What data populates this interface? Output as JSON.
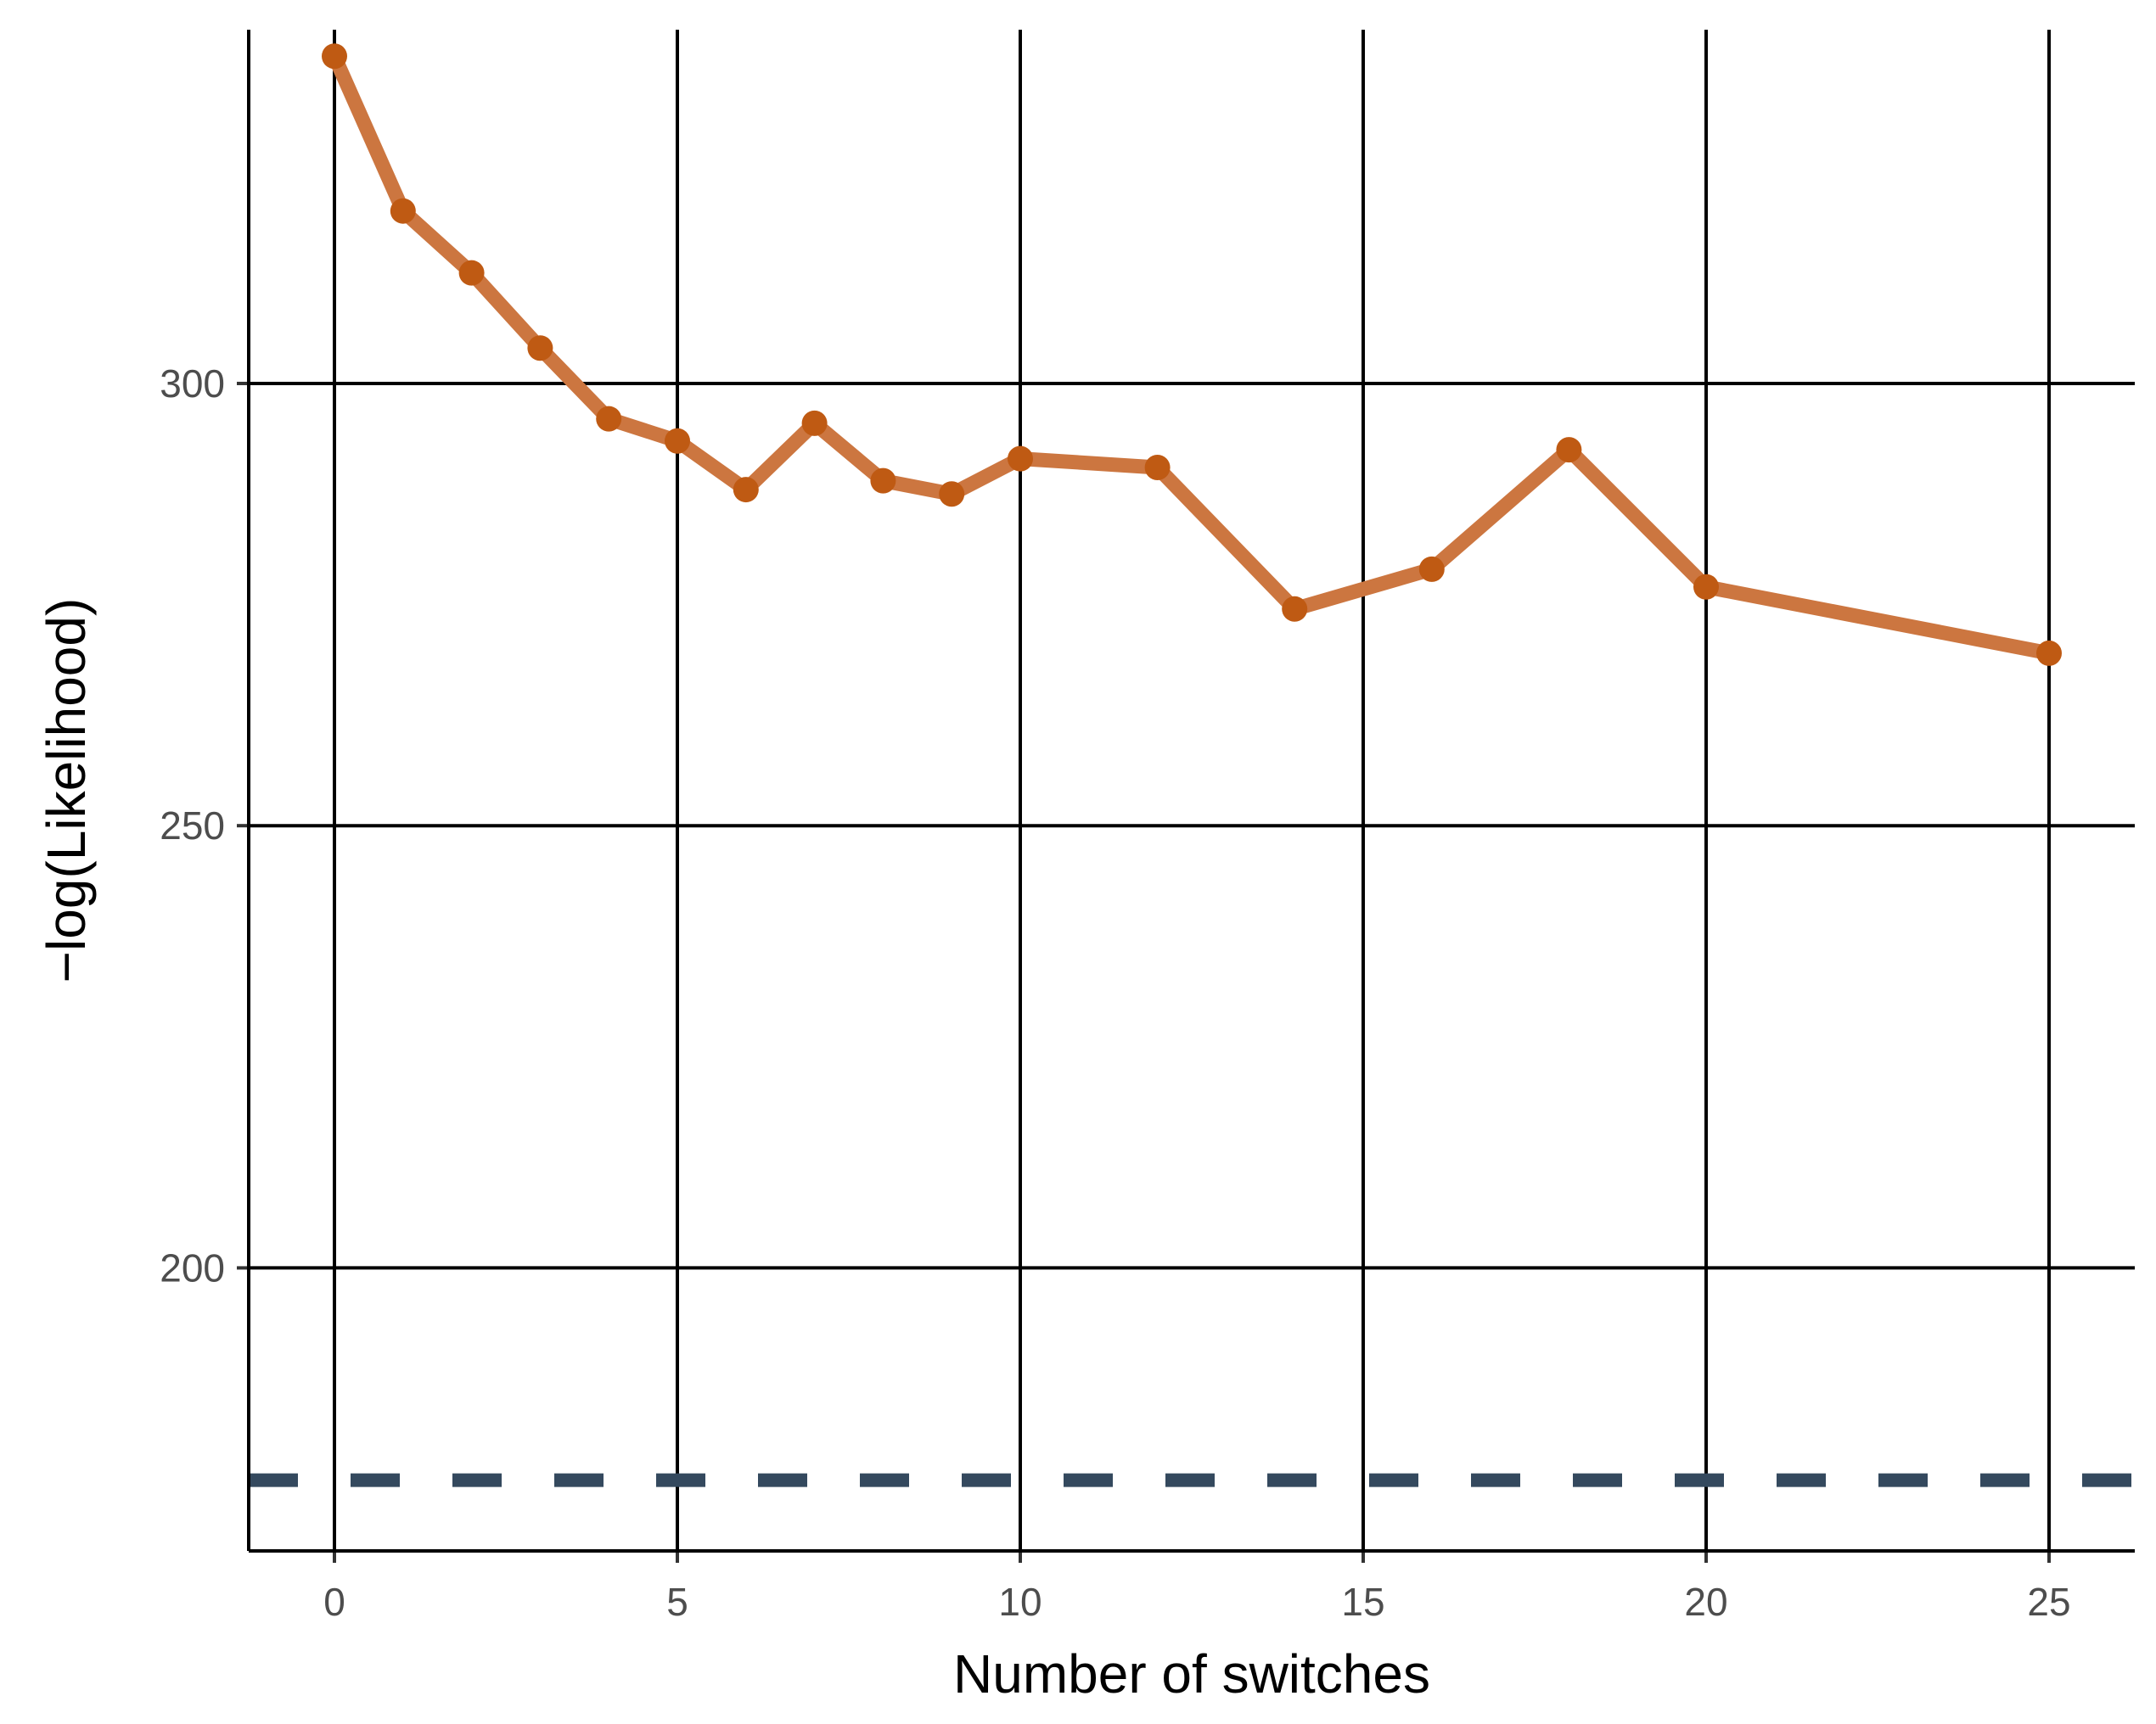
{
  "chart_data": {
    "type": "line",
    "xlabel": "Number of switches",
    "ylabel": "−log(Likelihood)",
    "xlim": [
      -1.25,
      26.25
    ],
    "ylim": [
      168,
      340
    ],
    "x_ticks": [
      0,
      5,
      10,
      15,
      20,
      25
    ],
    "x_tick_labels": [
      "0",
      "5",
      "10",
      "15",
      "20",
      "25"
    ],
    "y_ticks": [
      200,
      250,
      300
    ],
    "y_tick_labels": [
      "200",
      "250",
      "300"
    ],
    "grid": true,
    "series": [
      {
        "x": [
          0,
          1,
          2,
          3,
          4,
          5,
          6,
          7,
          8,
          9,
          10,
          12,
          14,
          16,
          18,
          20,
          25
        ],
        "y": [
          337,
          319.5,
          312.5,
          304,
          296,
          293.5,
          288,
          295.5,
          289,
          287.5,
          291.5,
          290.5,
          274.5,
          279,
          292.5,
          277,
          269.5
        ],
        "color": "#cc7640",
        "marker_color": "#bf5a13"
      }
    ],
    "reference_line": {
      "y": 176,
      "style": "dashed",
      "color": "#34495e"
    }
  }
}
